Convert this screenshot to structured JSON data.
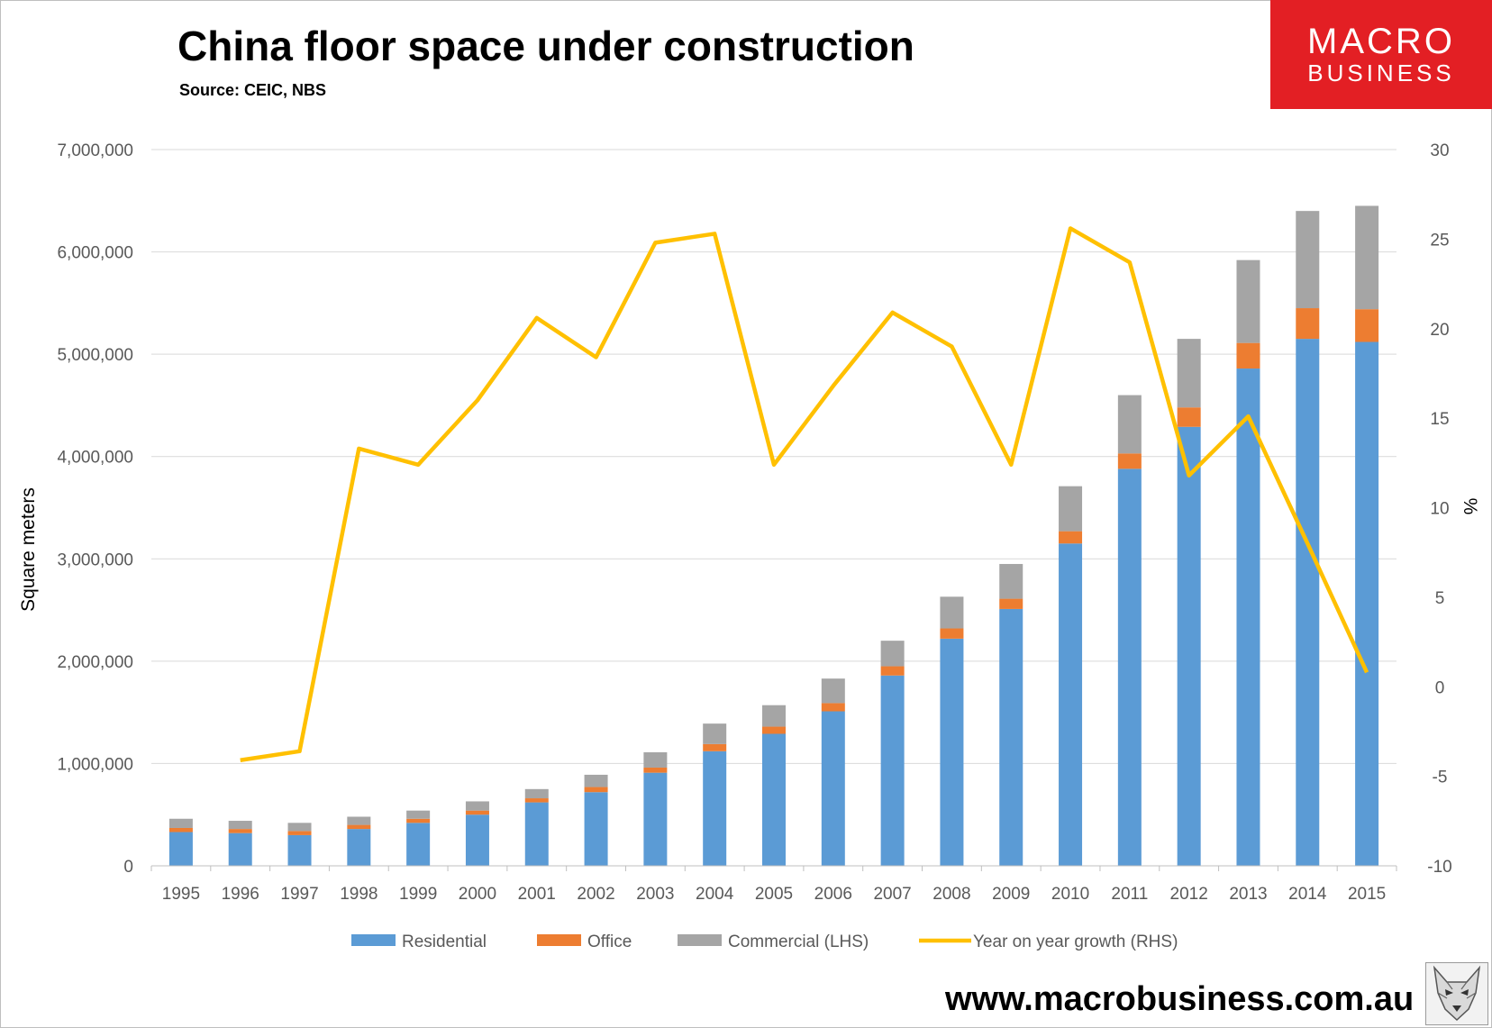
{
  "header": {
    "title": "China floor space under construction",
    "subtitle": "Source: CEIC, NBS"
  },
  "brand": {
    "line1": "MACRO",
    "line2": "BUSINESS",
    "color": "#e31f24"
  },
  "footer": {
    "url": "www.macrobusiness.com.au"
  },
  "chart_data": {
    "type": "bar",
    "stacked": true,
    "categories": [
      "1995",
      "1996",
      "1997",
      "1998",
      "1999",
      "2000",
      "2001",
      "2002",
      "2003",
      "2004",
      "2005",
      "2006",
      "2007",
      "2008",
      "2009",
      "2010",
      "2011",
      "2012",
      "2013",
      "2014",
      "2015"
    ],
    "series": [
      {
        "name": "Residential",
        "type": "bar",
        "axis": "left",
        "color": "#5b9bd5",
        "values": [
          330000,
          320000,
          300000,
          360000,
          420000,
          500000,
          620000,
          720000,
          910000,
          1120000,
          1290000,
          1510000,
          1860000,
          2220000,
          2510000,
          3150000,
          3880000,
          4290000,
          4860000,
          5150000,
          5120000
        ]
      },
      {
        "name": "Office",
        "type": "bar",
        "axis": "left",
        "color": "#ed7d31",
        "values": [
          40000,
          40000,
          40000,
          40000,
          40000,
          40000,
          40000,
          50000,
          50000,
          70000,
          70000,
          80000,
          90000,
          100000,
          100000,
          120000,
          150000,
          190000,
          250000,
          300000,
          320000
        ]
      },
      {
        "name": "Commercial (LHS)",
        "type": "bar",
        "axis": "left",
        "color": "#a5a5a5",
        "values": [
          90000,
          80000,
          80000,
          80000,
          80000,
          90000,
          90000,
          120000,
          150000,
          200000,
          210000,
          240000,
          250000,
          310000,
          340000,
          440000,
          570000,
          670000,
          810000,
          950000,
          1010000
        ]
      },
      {
        "name": "Year on year growth (RHS)",
        "type": "line",
        "axis": "right",
        "color": "#ffc000",
        "values": [
          null,
          -4.1,
          -3.6,
          13.3,
          12.4,
          16.0,
          20.6,
          18.4,
          24.8,
          25.3,
          12.4,
          16.8,
          20.9,
          19.0,
          12.4,
          25.6,
          23.7,
          11.8,
          15.1,
          8.0,
          0.8
        ]
      }
    ],
    "xlabel": "",
    "ylabel": "Square meters",
    "ylabel_right": "%",
    "ylim": [
      0,
      7000000
    ],
    "ylim_right": [
      -10,
      30
    ],
    "yticks": [
      "0",
      "1,000,000",
      "2,000,000",
      "3,000,000",
      "4,000,000",
      "5,000,000",
      "6,000,000",
      "7,000,000"
    ],
    "yticks_right": [
      "-10",
      "-5",
      "0",
      "5",
      "10",
      "15",
      "20",
      "25",
      "30"
    ],
    "grid": true,
    "legend_position": "bottom"
  }
}
